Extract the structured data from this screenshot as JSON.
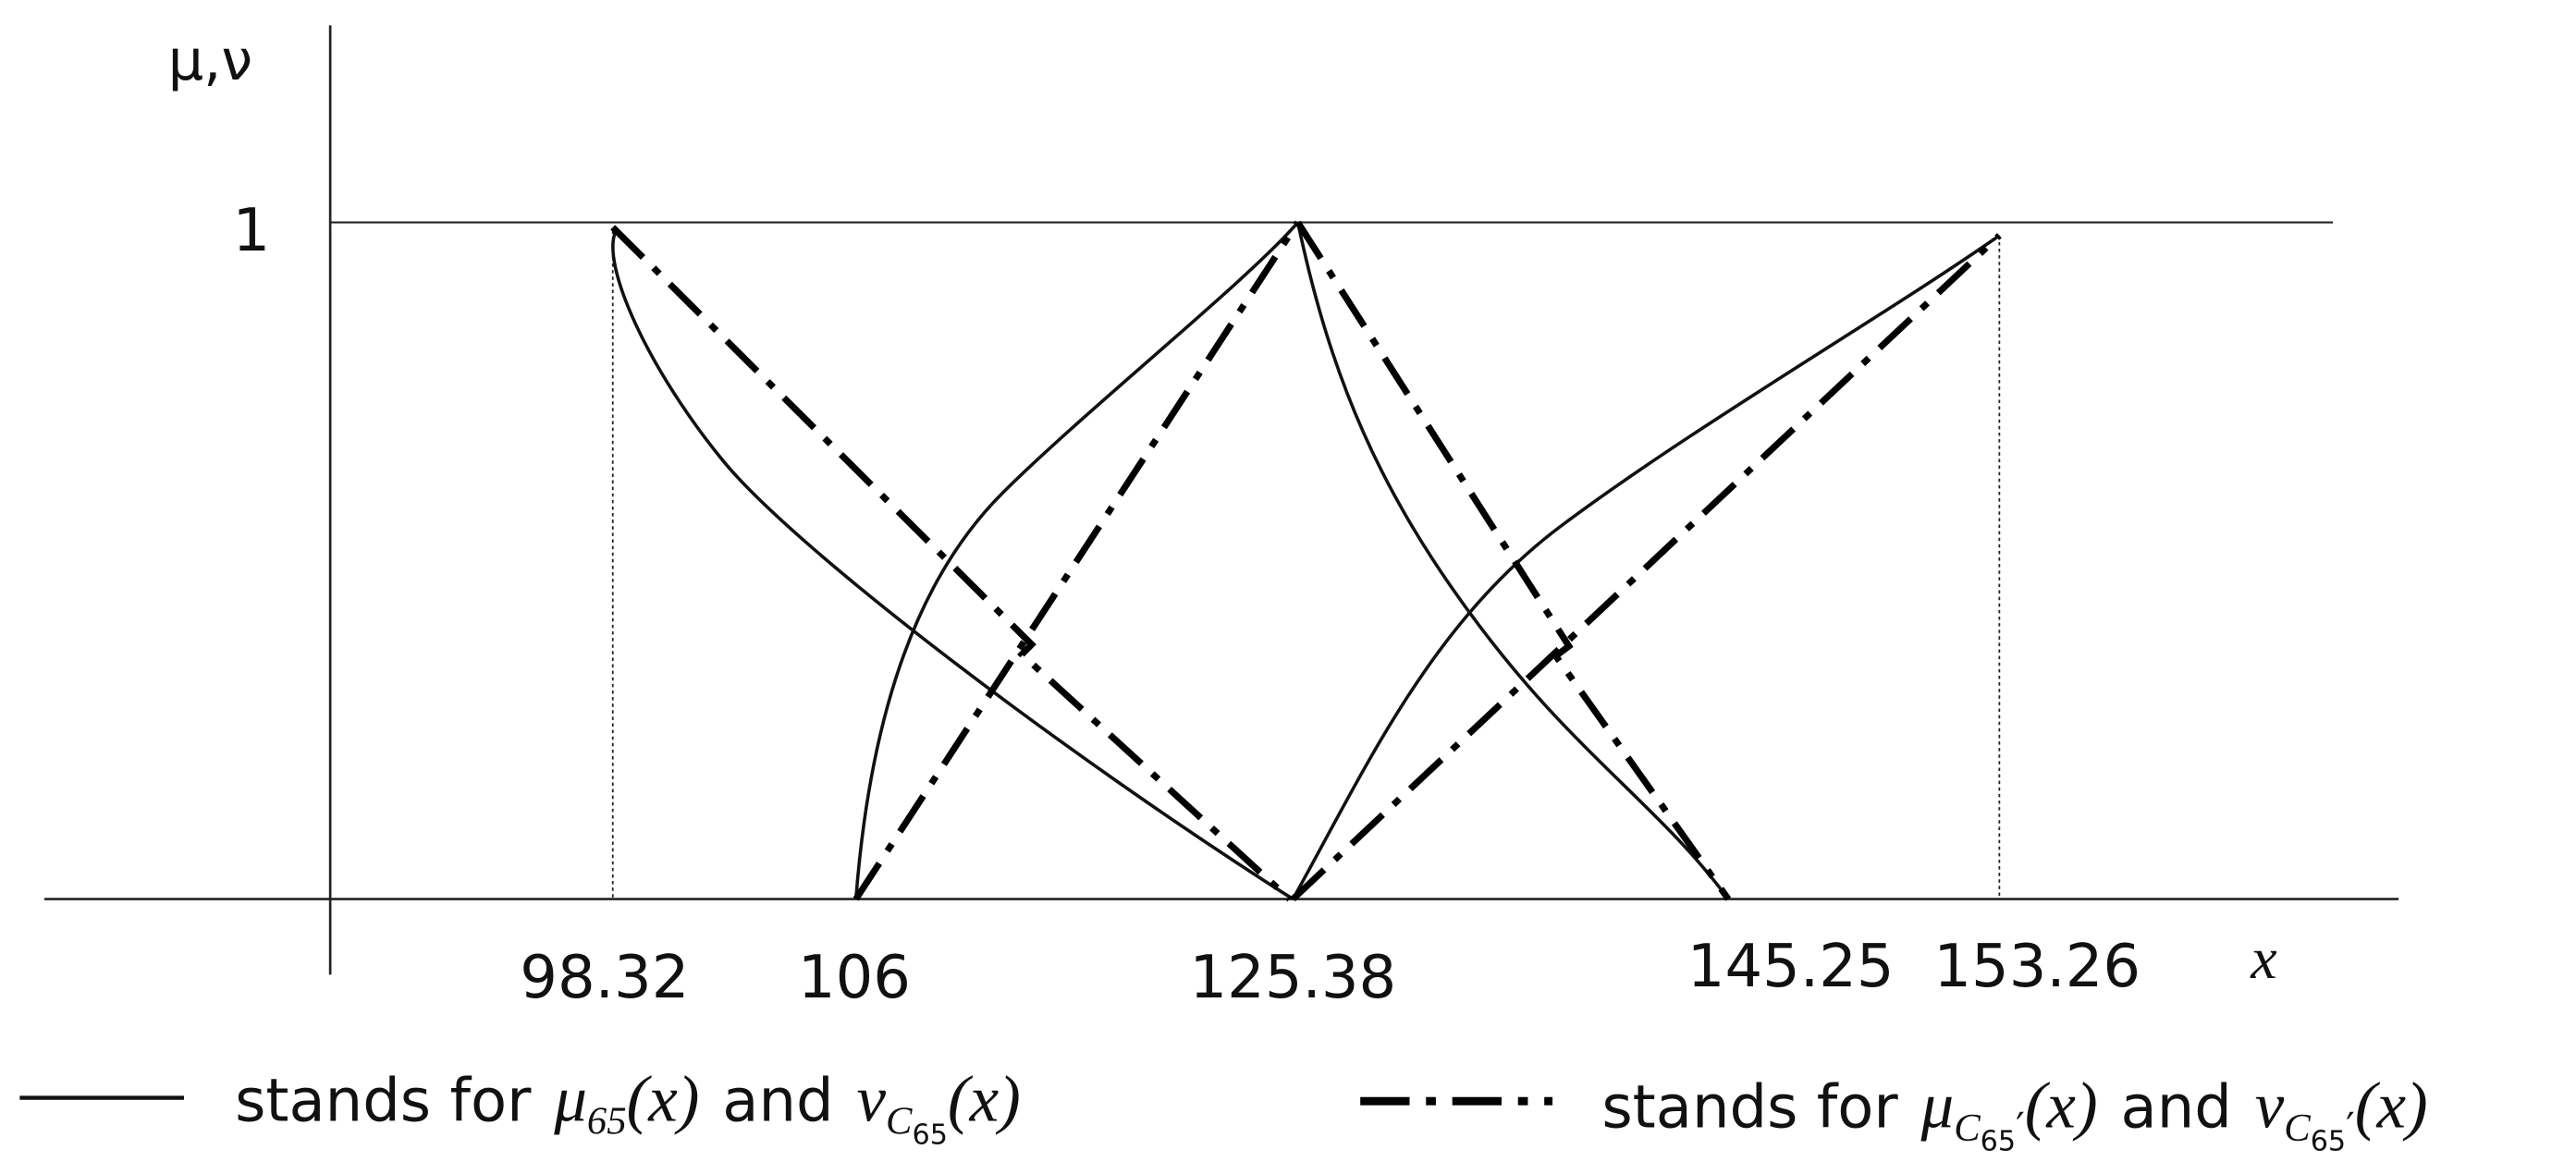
{
  "axes": {
    "y_label": "μ,ν",
    "y_tick": "1",
    "x_label": "x",
    "x_ticks": [
      "98.32",
      "106",
      "125.38",
      "145.25",
      "153.26"
    ]
  },
  "legend": [
    {
      "prefix": "stands for",
      "terms": [
        {
          "symbol": "μ",
          "sub": "65",
          "arg": "(x)"
        },
        {
          "joiner": "and",
          "symbol": "ν",
          "sub": "C",
          "subsub": "65",
          "arg": "(x)"
        }
      ]
    },
    {
      "prefix": "stands for",
      "terms": [
        {
          "symbol": "μ",
          "sub": "C",
          "subsub": "65",
          "prime": "′",
          "arg": "(x)"
        },
        {
          "joiner": "and",
          "symbol": "ν",
          "sub": "C",
          "subsub": "65",
          "prime": "′",
          "arg": "(x)"
        }
      ]
    }
  ]
}
